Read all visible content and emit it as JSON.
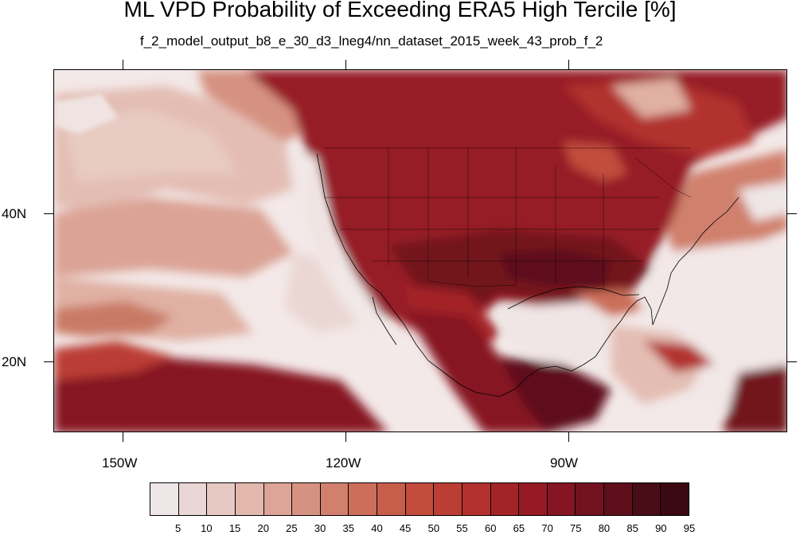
{
  "title": "ML VPD Probability of Exceeding ERA5 High Tercile [%]",
  "subtitle": "f_2_model_output_b8_e_30_d3_lneg4/nn_dataset_2015_week_43_prob_f_2",
  "axes": {
    "lon_labels": [
      "150W",
      "120W",
      "90W"
    ],
    "lat_labels": [
      "40N",
      "20N"
    ]
  },
  "colorbar": {
    "labels": [
      "5",
      "10",
      "15",
      "20",
      "25",
      "30",
      "35",
      "40",
      "45",
      "50",
      "55",
      "60",
      "65",
      "70",
      "75",
      "80",
      "85",
      "90",
      "95"
    ],
    "colors": [
      "#efe7e7",
      "#ead6d4",
      "#e6c9c3",
      "#e2b8ad",
      "#dca597",
      "#d69281",
      "#d0806d",
      "#cb6e5a",
      "#c75e4c",
      "#c24d3e",
      "#bb3e34",
      "#b2312e",
      "#a42328",
      "#961a25",
      "#861523",
      "#72121f",
      "#5e0f1b",
      "#4a0c17",
      "#3a0912"
    ]
  },
  "icons": [
    "map-coastline-icon",
    "state-borders-icon"
  ]
}
